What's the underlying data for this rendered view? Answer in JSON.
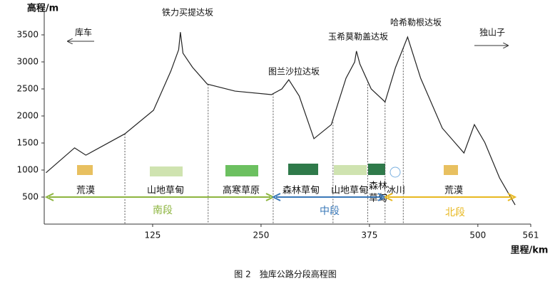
{
  "chart_data": {
    "type": "line",
    "ylabel": "高程/m",
    "xlabel": "里程/km",
    "caption": "图 2　独库公路分段高程图",
    "x": [
      2,
      35,
      48,
      93,
      126,
      146,
      155,
      157,
      160,
      171,
      188,
      220,
      262,
      274,
      282,
      294,
      311,
      331,
      348,
      358,
      360,
      364,
      377,
      393,
      405,
      419,
      434,
      459,
      484,
      496,
      508,
      525,
      543
    ],
    "values": [
      950,
      1410,
      1275,
      1670,
      2105,
      2830,
      3225,
      3550,
      3160,
      2900,
      2590,
      2460,
      2395,
      2500,
      2670,
      2370,
      1580,
      1840,
      2700,
      3000,
      3200,
      2960,
      2500,
      2260,
      2895,
      3460,
      2700,
      1775,
      1315,
      1840,
      1510,
      855,
      355
    ],
    "color": "#222222",
    "xlim": [
      0,
      561
    ],
    "xticks": [
      125,
      250,
      375,
      500,
      561
    ],
    "ylim": [
      0,
      3900
    ],
    "yticks": [
      500,
      1000,
      1500,
      2000,
      2500,
      3000,
      3500
    ],
    "boundaries": [
      93,
      189,
      264,
      333,
      373,
      393,
      414
    ],
    "peaks": [
      "铁力买提达坂",
      "图兰沙拉达坂",
      "玉希莫勒盖达坂",
      "哈希勒根达坂"
    ],
    "start": "库车",
    "end": "独山子",
    "zones": [
      [
        "荒漠"
      ],
      [
        "山地草甸"
      ],
      [
        "高寒草原"
      ],
      [
        "森林草甸"
      ],
      [
        "山地草甸"
      ],
      [
        "森林",
        "草甸"
      ],
      [
        "冰川"
      ],
      [
        "荒漠"
      ]
    ],
    "sections": [
      {
        "name": "南段",
        "color": "#8db53f"
      },
      {
        "name": "中段",
        "color": "#3a78b8"
      },
      {
        "name": "北段",
        "color": "#e8b820"
      }
    ]
  }
}
